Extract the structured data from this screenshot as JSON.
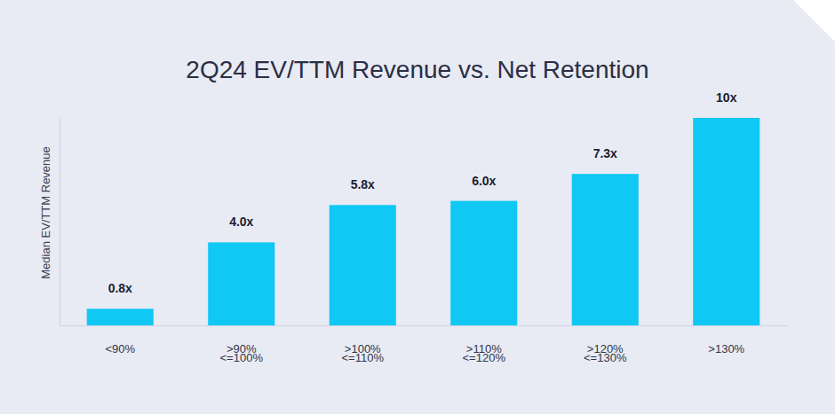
{
  "chart_data": {
    "type": "bar",
    "title": "2Q24 EV/TTM Revenue vs. Net Retention",
    "y_label": "Median EV/TTM Revenue",
    "categories": [
      "<90%",
      ">90%\n<=100%",
      ">100%\n<=110%",
      ">110%\n<=120%",
      ">120%\n<=130%",
      ">130%"
    ],
    "values": [
      0.8,
      4.0,
      5.8,
      6.0,
      7.3,
      10
    ],
    "value_labels": [
      "0.8x",
      "4.0x",
      "5.8x",
      "6.0x",
      "7.3x",
      "10x"
    ],
    "color": "#10c8f4",
    "ylim": [
      0,
      10
    ],
    "data_labels": true,
    "tick_labels": "x",
    "grid": false
  }
}
